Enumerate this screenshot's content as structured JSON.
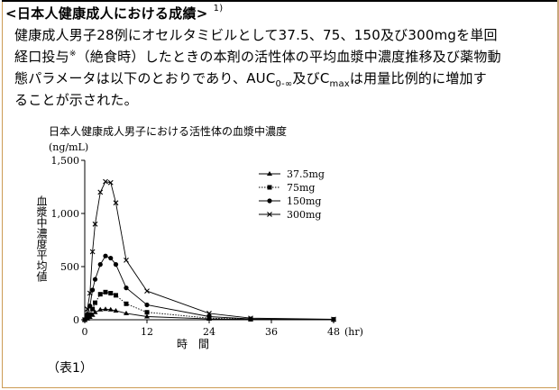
{
  "heading": {
    "title": "<日本人健康成人における成績>",
    "ref": "1)"
  },
  "paragraph": {
    "line1": "健康成人男子28例にオセルタミビルとして37.5、75、150及び300mgを単回",
    "line2_a": "経口投与",
    "line2_mark": "※",
    "line2_b": "（絶食時）したときの本剤の活性体の平均血漿中濃度推移及び薬物動",
    "line3_a": "態パラメータは以下のとおりであり、AUC",
    "line3_sub1": "0-∞",
    "line3_b": "及びC",
    "line3_sub2": "max",
    "line3_c": "は用量比例的に増加す",
    "line4": "ることが示された。"
  },
  "footnote": "（表1）",
  "chart_data": {
    "type": "line",
    "title": "日本人健康成人男子における活性体の血漿中濃度",
    "unit": "(ng/mL)",
    "ylabel": "血漿中濃度平均値",
    "xlabel": "時　間",
    "x_unit": "(hr)",
    "xlim": [
      0,
      48
    ],
    "ylim": [
      0,
      1500
    ],
    "xticks": [
      "0",
      "12",
      "24",
      "36",
      "48"
    ],
    "yticks": [
      "0",
      "500",
      "1,000",
      "1,500"
    ],
    "grid": false,
    "legend_position": "top-right",
    "series": [
      {
        "name": "37.5mg",
        "marker": "triangle",
        "style": "solid",
        "x": [
          0,
          0.5,
          1,
          1.5,
          2,
          3,
          4,
          5,
          6,
          8,
          12,
          24,
          32,
          48
        ],
        "y": [
          0,
          10,
          25,
          45,
          70,
          95,
          100,
          95,
          85,
          60,
          30,
          8,
          3,
          1
        ]
      },
      {
        "name": "75mg",
        "marker": "square",
        "style": "dotted",
        "x": [
          0,
          0.5,
          1,
          1.5,
          2,
          3,
          4,
          5,
          6,
          8,
          12,
          24,
          32,
          48
        ],
        "y": [
          0,
          20,
          50,
          100,
          160,
          240,
          260,
          250,
          230,
          150,
          70,
          15,
          5,
          2
        ]
      },
      {
        "name": "150mg",
        "marker": "circle",
        "style": "solid",
        "x": [
          0,
          0.5,
          1,
          1.5,
          2,
          3,
          4,
          5,
          6,
          8,
          12,
          24,
          32,
          48
        ],
        "y": [
          0,
          50,
          130,
          280,
          380,
          520,
          600,
          580,
          520,
          300,
          140,
          30,
          8,
          3
        ]
      },
      {
        "name": "300mg",
        "marker": "cross",
        "style": "solid",
        "x": [
          0,
          0.5,
          1,
          1.5,
          2,
          3,
          4,
          5,
          6,
          8,
          12,
          24,
          32,
          48
        ],
        "y": [
          0,
          100,
          250,
          640,
          900,
          1200,
          1300,
          1290,
          1100,
          560,
          270,
          60,
          15,
          5
        ]
      }
    ]
  }
}
